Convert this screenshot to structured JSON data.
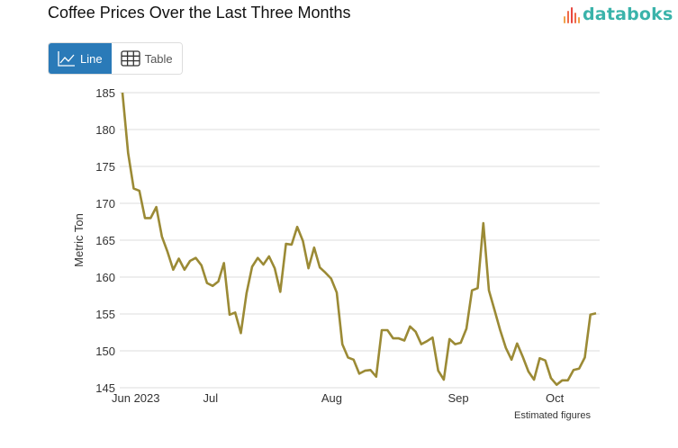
{
  "header": {
    "title": "Coffee Prices Over the Last Three Months",
    "logo_text": "databoks"
  },
  "view_toggle": {
    "options": [
      {
        "label": "Line",
        "icon": "line-chart-icon",
        "active": true
      },
      {
        "label": "Table",
        "icon": "table-grid-icon",
        "active": false
      }
    ]
  },
  "colors": {
    "line": "#9b8a35",
    "active_button": "#2a7ab8",
    "logo": "#3ab3aa",
    "grid": "#dddddd"
  },
  "chart_data": {
    "type": "line",
    "title": "Coffee Prices Over the Last Three Months",
    "xlabel": "",
    "ylabel": "Metric Ton",
    "ylim": [
      145,
      185
    ],
    "yticks": [
      145,
      150,
      155,
      160,
      165,
      170,
      175,
      180,
      185
    ],
    "xticks": [
      {
        "label": "Jun 2023",
        "pos": 0
      },
      {
        "label": "Jul",
        "pos": 16
      },
      {
        "label": "Aug",
        "pos": 38
      },
      {
        "label": "Sep",
        "pos": 61
      },
      {
        "label": "Oct",
        "pos": 78.5
      }
    ],
    "xlim": [
      0,
      86
    ],
    "grid": true,
    "annotation": "Estimated figures",
    "series": [
      {
        "name": "Coffee price",
        "values": [
          185,
          176.8,
          172,
          171.7,
          168,
          168,
          169.5,
          165.5,
          163.4,
          161,
          162.5,
          161,
          162.2,
          162.6,
          161.6,
          159.2,
          158.8,
          159.4,
          161.9,
          154.9,
          155.2,
          152.4,
          157.8,
          161.4,
          162.6,
          161.7,
          162.8,
          161.2,
          158,
          164.5,
          164.4,
          166.8,
          164.9,
          161.2,
          164,
          161.3,
          160.6,
          159.8,
          157.9,
          150.9,
          149.1,
          148.8,
          146.9,
          147.3,
          147.4,
          146.5,
          152.8,
          152.8,
          151.7,
          151.7,
          151.4,
          153.3,
          152.6,
          150.9,
          151.3,
          151.8,
          147.3,
          146.1,
          151.6,
          150.9,
          151.1,
          153,
          158.2,
          158.5,
          167.3,
          158.2,
          155.5,
          152.8,
          150.4,
          148.8,
          151,
          149.2,
          147.2,
          146.1,
          149,
          148.7,
          146.3,
          145.4,
          146,
          146,
          147.4,
          147.6,
          149.1,
          154.9,
          155.1
        ]
      }
    ]
  }
}
